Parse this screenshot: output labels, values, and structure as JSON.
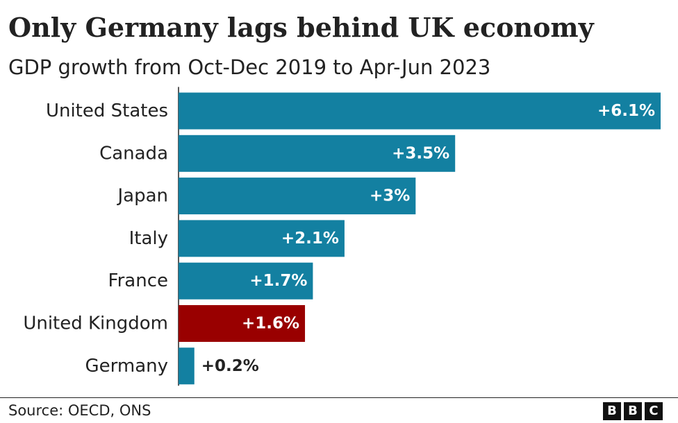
{
  "header": {
    "title": "Only Germany lags behind UK economy",
    "subtitle": "GDP growth from Oct-Dec 2019 to Apr-Jun 2023"
  },
  "footer": {
    "source": "Source: OECD, ONS",
    "logo_letters": [
      "B",
      "B",
      "C"
    ]
  },
  "colors": {
    "default_bar": "#1380A1",
    "highlight_bar": "#990000",
    "label_inside": "#ffffff",
    "label_outside": "#222222",
    "axis": "#222222"
  },
  "chart_data": {
    "type": "bar",
    "orientation": "horizontal",
    "title": "Only Germany lags behind UK economy",
    "subtitle": "GDP growth from Oct-Dec 2019 to Apr-Jun 2023",
    "xlabel": "",
    "ylabel": "",
    "unit": "%",
    "xlim": [
      0,
      6.1
    ],
    "grid": false,
    "categories": [
      "United States",
      "Canada",
      "Japan",
      "Italy",
      "France",
      "United Kingdom",
      "Germany"
    ],
    "values": [
      6.1,
      3.5,
      3.0,
      2.1,
      1.7,
      1.6,
      0.2
    ],
    "data_labels": [
      "+6.1%",
      "+3.5%",
      "+3%",
      "+2.1%",
      "+1.7%",
      "+1.6%",
      "+0.2%"
    ],
    "highlight": "United Kingdom",
    "source": "Source: OECD, ONS"
  }
}
